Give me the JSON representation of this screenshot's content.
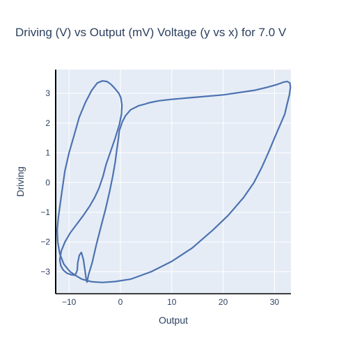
{
  "chart_data": {
    "type": "line",
    "title": "Driving (V) vs Output (mV) Voltage (y vs x) for 7.0 V",
    "xlabel": "Output",
    "ylabel": "Driving",
    "xlim": [
      -12.6,
      33.2
    ],
    "ylim": [
      -3.74,
      3.8
    ],
    "x_ticks": [
      -10,
      0,
      10,
      20,
      30
    ],
    "y_ticks": [
      -3,
      -2,
      -1,
      0,
      1,
      2,
      3
    ],
    "x_tick_labels": [
      "−10",
      "0",
      "10",
      "20",
      "30"
    ],
    "y_tick_labels": [
      "−3",
      "−2",
      "−1",
      "0",
      "1",
      "2",
      "3"
    ],
    "grid": true,
    "legend": "none",
    "colors": {
      "line": "#4c72b0",
      "plot_bg": "#e5ecf6",
      "grid": "#ffffff",
      "axis": "#000000"
    },
    "series": [
      {
        "x": [
          -6.5,
          -6.2,
          -5.5,
          -4.7,
          -3.8,
          -2.9,
          -2.1,
          -1.5,
          -1.0,
          -0.7,
          -0.4,
          -0.2,
          0.1,
          0.4,
          1.0,
          2.0,
          3.5,
          4.8,
          5.5,
          6.0,
          7.5,
          10.0,
          14.0,
          20.0,
          26.0,
          28.5,
          30.5,
          31.8,
          32.5,
          33.0,
          33.1,
          32.9,
          32.4,
          32.0,
          31.0,
          30.0,
          28.8,
          27.5,
          26.0,
          24.0,
          21.0,
          18.0,
          14.0,
          10.0,
          6.0,
          2.0,
          -1.0,
          -3.5,
          -5.5,
          -6.5,
          -7.5,
          -8.5,
          -9.8,
          -11.0,
          -11.8,
          -12.2,
          -12.3,
          -12.1,
          -11.7,
          -11.3,
          -10.8,
          -10.0,
          -9.0,
          -8.0,
          -6.8,
          -5.6,
          -4.5,
          -3.5,
          -2.6,
          -1.8,
          -1.0,
          -0.3,
          0.1,
          0.3,
          0.2,
          -0.2,
          -1.0,
          -2.0,
          -2.8,
          -3.4,
          -4.2,
          -5.0,
          -6.0,
          -7.2,
          -8.5,
          -9.8,
          -10.8,
          -11.5,
          -11.8,
          -11.6,
          -11.1,
          -10.4,
          -9.6,
          -8.8,
          -8.4,
          -8.3,
          -8.0,
          -7.6,
          -7.2,
          -6.9,
          -6.7,
          -6.6,
          -6.5
        ],
        "y": [
          -3.35,
          -3.1,
          -2.7,
          -2.1,
          -1.5,
          -0.9,
          -0.3,
          0.2,
          0.7,
          1.1,
          1.45,
          1.75,
          1.9,
          2.05,
          2.25,
          2.45,
          2.58,
          2.64,
          2.68,
          2.7,
          2.75,
          2.8,
          2.86,
          2.95,
          3.1,
          3.2,
          3.3,
          3.38,
          3.4,
          3.35,
          3.2,
          2.95,
          2.6,
          2.3,
          1.9,
          1.5,
          1.0,
          0.5,
          0.0,
          -0.5,
          -1.1,
          -1.6,
          -2.2,
          -2.65,
          -3.0,
          -3.25,
          -3.33,
          -3.36,
          -3.34,
          -3.3,
          -3.25,
          -3.15,
          -3.0,
          -2.75,
          -2.4,
          -2.0,
          -1.6,
          -1.2,
          -0.7,
          -0.2,
          0.4,
          1.0,
          1.6,
          2.2,
          2.7,
          3.1,
          3.35,
          3.42,
          3.4,
          3.3,
          3.15,
          3.0,
          2.85,
          2.6,
          2.3,
          1.95,
          1.5,
          1.0,
          0.6,
          0.2,
          -0.2,
          -0.5,
          -0.8,
          -1.1,
          -1.4,
          -1.7,
          -2.0,
          -2.3,
          -2.6,
          -2.8,
          -2.95,
          -3.05,
          -3.1,
          -3.12,
          -2.95,
          -2.7,
          -2.45,
          -2.35,
          -2.6,
          -2.95,
          -3.2,
          -3.3,
          -3.35
        ]
      }
    ]
  }
}
